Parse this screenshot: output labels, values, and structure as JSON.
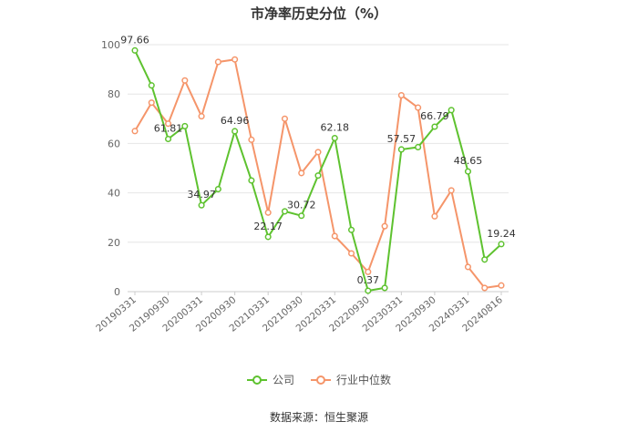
{
  "chart_data": {
    "type": "line",
    "title": "市净率历史分位（%）",
    "ylim": [
      0,
      100
    ],
    "yticks": [
      0,
      20,
      40,
      60,
      80,
      100
    ],
    "x": [
      "20190331",
      "",
      "20190930",
      "",
      "20200331",
      "",
      "20200930",
      "",
      "20210331",
      "",
      "20210930",
      "",
      "20220331",
      "",
      "20220930",
      "",
      "20230331",
      "",
      "20230930",
      "",
      "20240331",
      "",
      "20240816"
    ],
    "xtick_labels": [
      "20190331",
      "20190930",
      "20200331",
      "20200930",
      "20210331",
      "20210930",
      "20220331",
      "20220930",
      "20230331",
      "20230930",
      "20240331",
      "20240816"
    ],
    "series": [
      {
        "name": "公司",
        "color": "#5ec22f",
        "values": [
          97.66,
          83.5,
          61.81,
          67.0,
          34.97,
          41.5,
          64.96,
          45.0,
          22.17,
          32.5,
          30.72,
          47.0,
          62.18,
          25.0,
          0.37,
          1.5,
          57.57,
          58.5,
          66.79,
          73.5,
          48.65,
          13.0,
          19.24
        ],
        "labels": [
          "97.66",
          null,
          "61.81",
          null,
          "34.97",
          null,
          "64.96",
          null,
          "22.17",
          null,
          "30.72",
          null,
          "62.18",
          null,
          "0.37",
          null,
          "57.57",
          null,
          "66.79",
          null,
          "48.65",
          null,
          "19.24"
        ]
      },
      {
        "name": "行业中位数",
        "color": "#f5956a",
        "values": [
          65.0,
          76.5,
          68.0,
          85.5,
          71.0,
          93.0,
          94.0,
          61.5,
          32.0,
          70.0,
          48.0,
          56.5,
          22.5,
          15.5,
          8.0,
          26.5,
          79.5,
          74.5,
          30.5,
          41.0,
          10.0,
          1.5,
          2.5
        ]
      }
    ],
    "grid": true,
    "legend_position": "bottom-center"
  },
  "source": "数据来源：恒生聚源",
  "legend": {
    "company": "公司",
    "industry": "行业中位数"
  }
}
